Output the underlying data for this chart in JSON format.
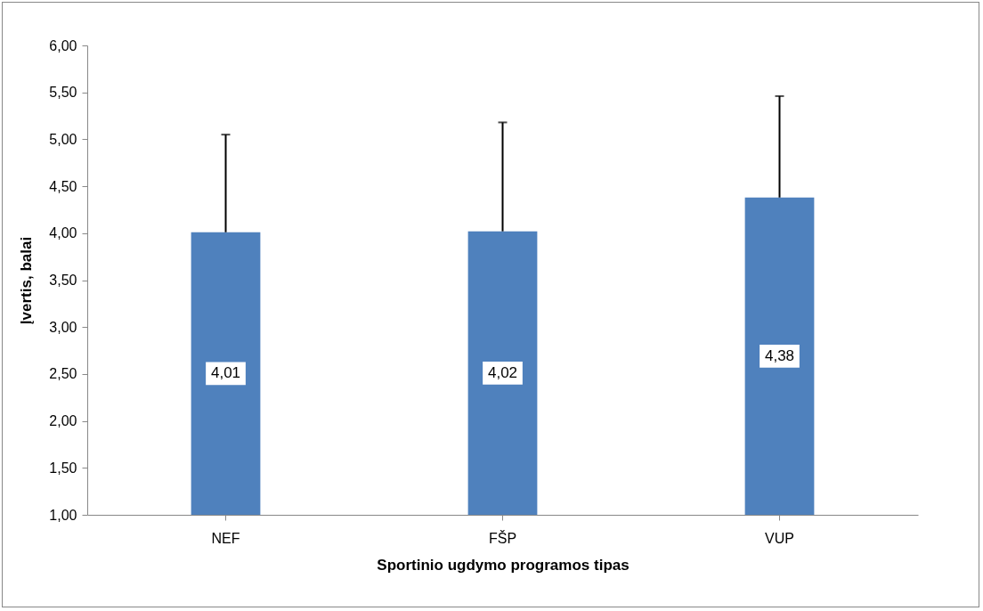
{
  "chart_data": {
    "type": "bar",
    "xlabel": "Sportinio ugdymo programos tipas",
    "ylabel": "Įvertis, balai",
    "categories": [
      "NEF",
      "FŠP",
      "VUP"
    ],
    "values": [
      4.01,
      4.02,
      4.38
    ],
    "value_labels": [
      "4,01",
      "4,02",
      "4,38"
    ],
    "errors": [
      [
        4.01,
        5.05
      ],
      [
        4.02,
        5.18
      ],
      [
        4.38,
        5.46
      ]
    ],
    "color": "#4f81bd",
    "ylim": [
      1,
      6
    ],
    "yticks": [
      {
        "value": 1,
        "label": "1,00"
      },
      {
        "value": 1.5,
        "label": "1,50"
      },
      {
        "value": 2,
        "label": "2,00"
      },
      {
        "value": 2.5,
        "label": "2,50"
      },
      {
        "value": 3,
        "label": "3,00"
      },
      {
        "value": 3.5,
        "label": "3,50"
      },
      {
        "value": 4,
        "label": "4,00"
      },
      {
        "value": 4.5,
        "label": "4,50"
      },
      {
        "value": 5,
        "label": "5,00"
      },
      {
        "value": 5.5,
        "label": "5,50"
      },
      {
        "value": 6,
        "label": "6,00"
      }
    ],
    "grid": false
  }
}
